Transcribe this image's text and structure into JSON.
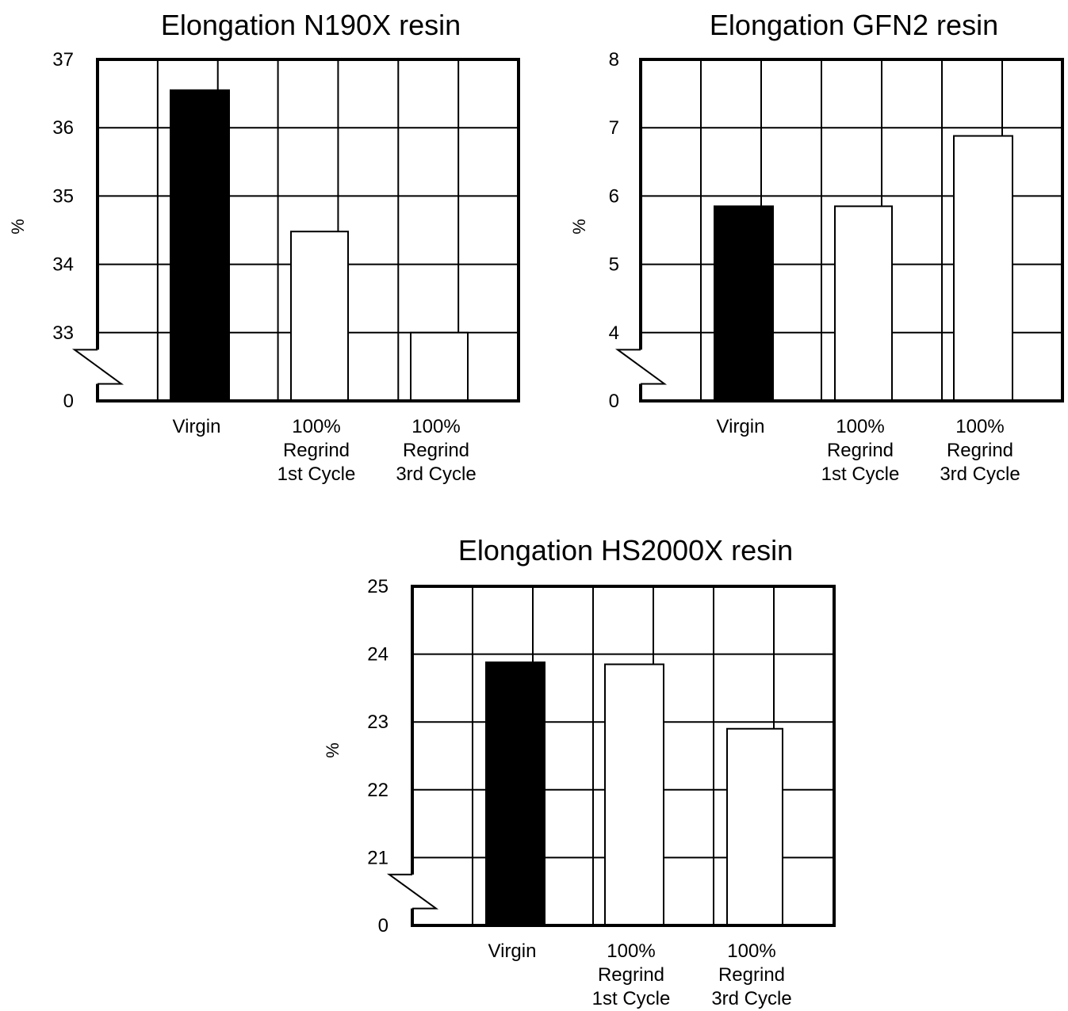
{
  "colors": {
    "ink": "#000000",
    "background": "#ffffff",
    "virgin_fill": "#000000",
    "regrind_fill": "#ffffff"
  },
  "chart_data": [
    {
      "type": "bar",
      "title": "Elongation N190X resin",
      "ylabel": "%",
      "categories": [
        [
          "Virgin"
        ],
        [
          "100%",
          "Regrind",
          "1st Cycle"
        ],
        [
          "100%",
          "Regrind",
          "3rd Cycle"
        ]
      ],
      "values": [
        36.55,
        34.48,
        33.0
      ],
      "yticks": [
        "0",
        "33",
        "34",
        "35",
        "36",
        "37"
      ],
      "ylim": [
        33,
        37
      ],
      "axis_break": true,
      "grid": true
    },
    {
      "type": "bar",
      "title": "Elongation GFN2 resin",
      "ylabel": "%",
      "categories": [
        [
          "Virgin"
        ],
        [
          "100%",
          "Regrind",
          "1st Cycle"
        ],
        [
          "100%",
          "Regrind",
          "3rd Cycle"
        ]
      ],
      "values": [
        5.85,
        5.85,
        6.88
      ],
      "yticks": [
        "0",
        "4",
        "5",
        "6",
        "7",
        "8"
      ],
      "ylim": [
        4,
        8
      ],
      "axis_break": true,
      "grid": true
    },
    {
      "type": "bar",
      "title": "Elongation HS2000X resin",
      "ylabel": "%",
      "categories": [
        [
          "Virgin"
        ],
        [
          "100%",
          "Regrind",
          "1st Cycle"
        ],
        [
          "100%",
          "Regrind",
          "3rd Cycle"
        ]
      ],
      "values": [
        23.88,
        23.85,
        22.9
      ],
      "yticks": [
        "0",
        "21",
        "22",
        "23",
        "24",
        "25"
      ],
      "ylim": [
        21,
        25
      ],
      "axis_break": true,
      "grid": true
    }
  ]
}
